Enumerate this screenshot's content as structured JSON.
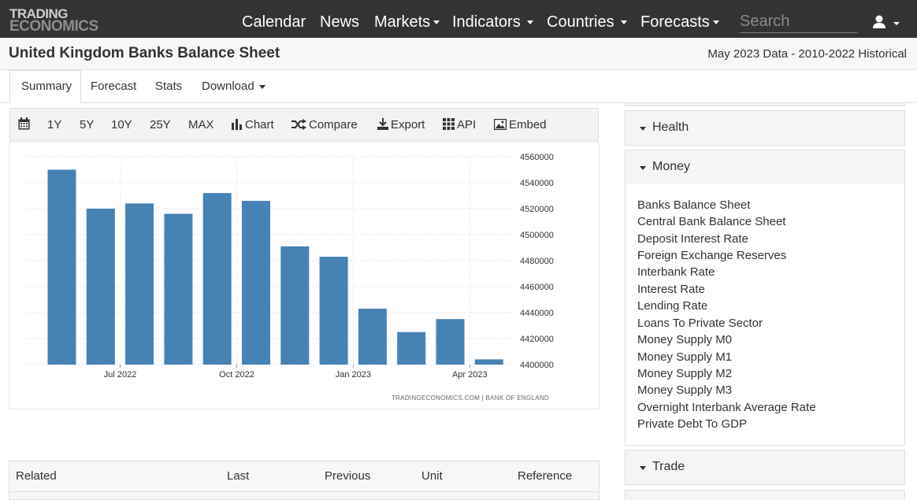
{
  "nav": {
    "logo_top": "TRADING",
    "logo_bottom": "ECONOMICS",
    "items": [
      "Calendar",
      "News",
      "Markets",
      "Indicators",
      "Countries",
      "Forecasts"
    ],
    "search_placeholder": "Search"
  },
  "title": "United Kingdom Banks Balance Sheet",
  "data_info": "May 2023 Data - 2010-2022 Historical",
  "tabs": [
    "Summary",
    "Forecast",
    "Stats",
    "Download"
  ],
  "active_tab": "Summary",
  "toolbar": {
    "ranges": [
      "1Y",
      "5Y",
      "10Y",
      "25Y",
      "MAX"
    ],
    "actions": [
      "Chart",
      "Compare",
      "Export",
      "API",
      "Embed"
    ]
  },
  "chart_data": {
    "type": "bar",
    "source": "TRADINGECONOMICS.COM  |  BANK OF ENGLAND",
    "x_ticks": [
      "Jul 2022",
      "Oct 2022",
      "Jan 2023",
      "Apr 2023"
    ],
    "y_ticks": [
      4400000,
      4420000,
      4440000,
      4460000,
      4480000,
      4500000,
      4520000,
      4540000,
      4560000
    ],
    "ylim": [
      4400000,
      4560000
    ],
    "categories": [
      "2022-05",
      "2022-06",
      "2022-07",
      "2022-08",
      "2022-09",
      "2022-10",
      "2022-11",
      "2022-12",
      "2023-01",
      "2023-02",
      "2023-03",
      "2023-04"
    ],
    "values": [
      4550000,
      4520000,
      4524000,
      4516000,
      4532000,
      4526000,
      4491000,
      4483000,
      4443000,
      4425000,
      4435000,
      4404000
    ],
    "color": "#4682b4"
  },
  "sidebar": {
    "health_label": "Health",
    "money_label": "Money",
    "trade_label": "Trade",
    "money_items": [
      "Banks Balance Sheet",
      "Central Bank Balance Sheet",
      "Deposit Interest Rate",
      "Foreign Exchange Reserves",
      "Interbank Rate",
      "Interest Rate",
      "Lending Rate",
      "Loans To Private Sector",
      "Money Supply M0",
      "Money Supply M1",
      "Money Supply M2",
      "Money Supply M3",
      "Overnight Interbank Average Rate",
      "Private Debt To GDP"
    ]
  },
  "related": {
    "headers": [
      "Related",
      "Last",
      "Previous",
      "Unit",
      "Reference"
    ]
  }
}
